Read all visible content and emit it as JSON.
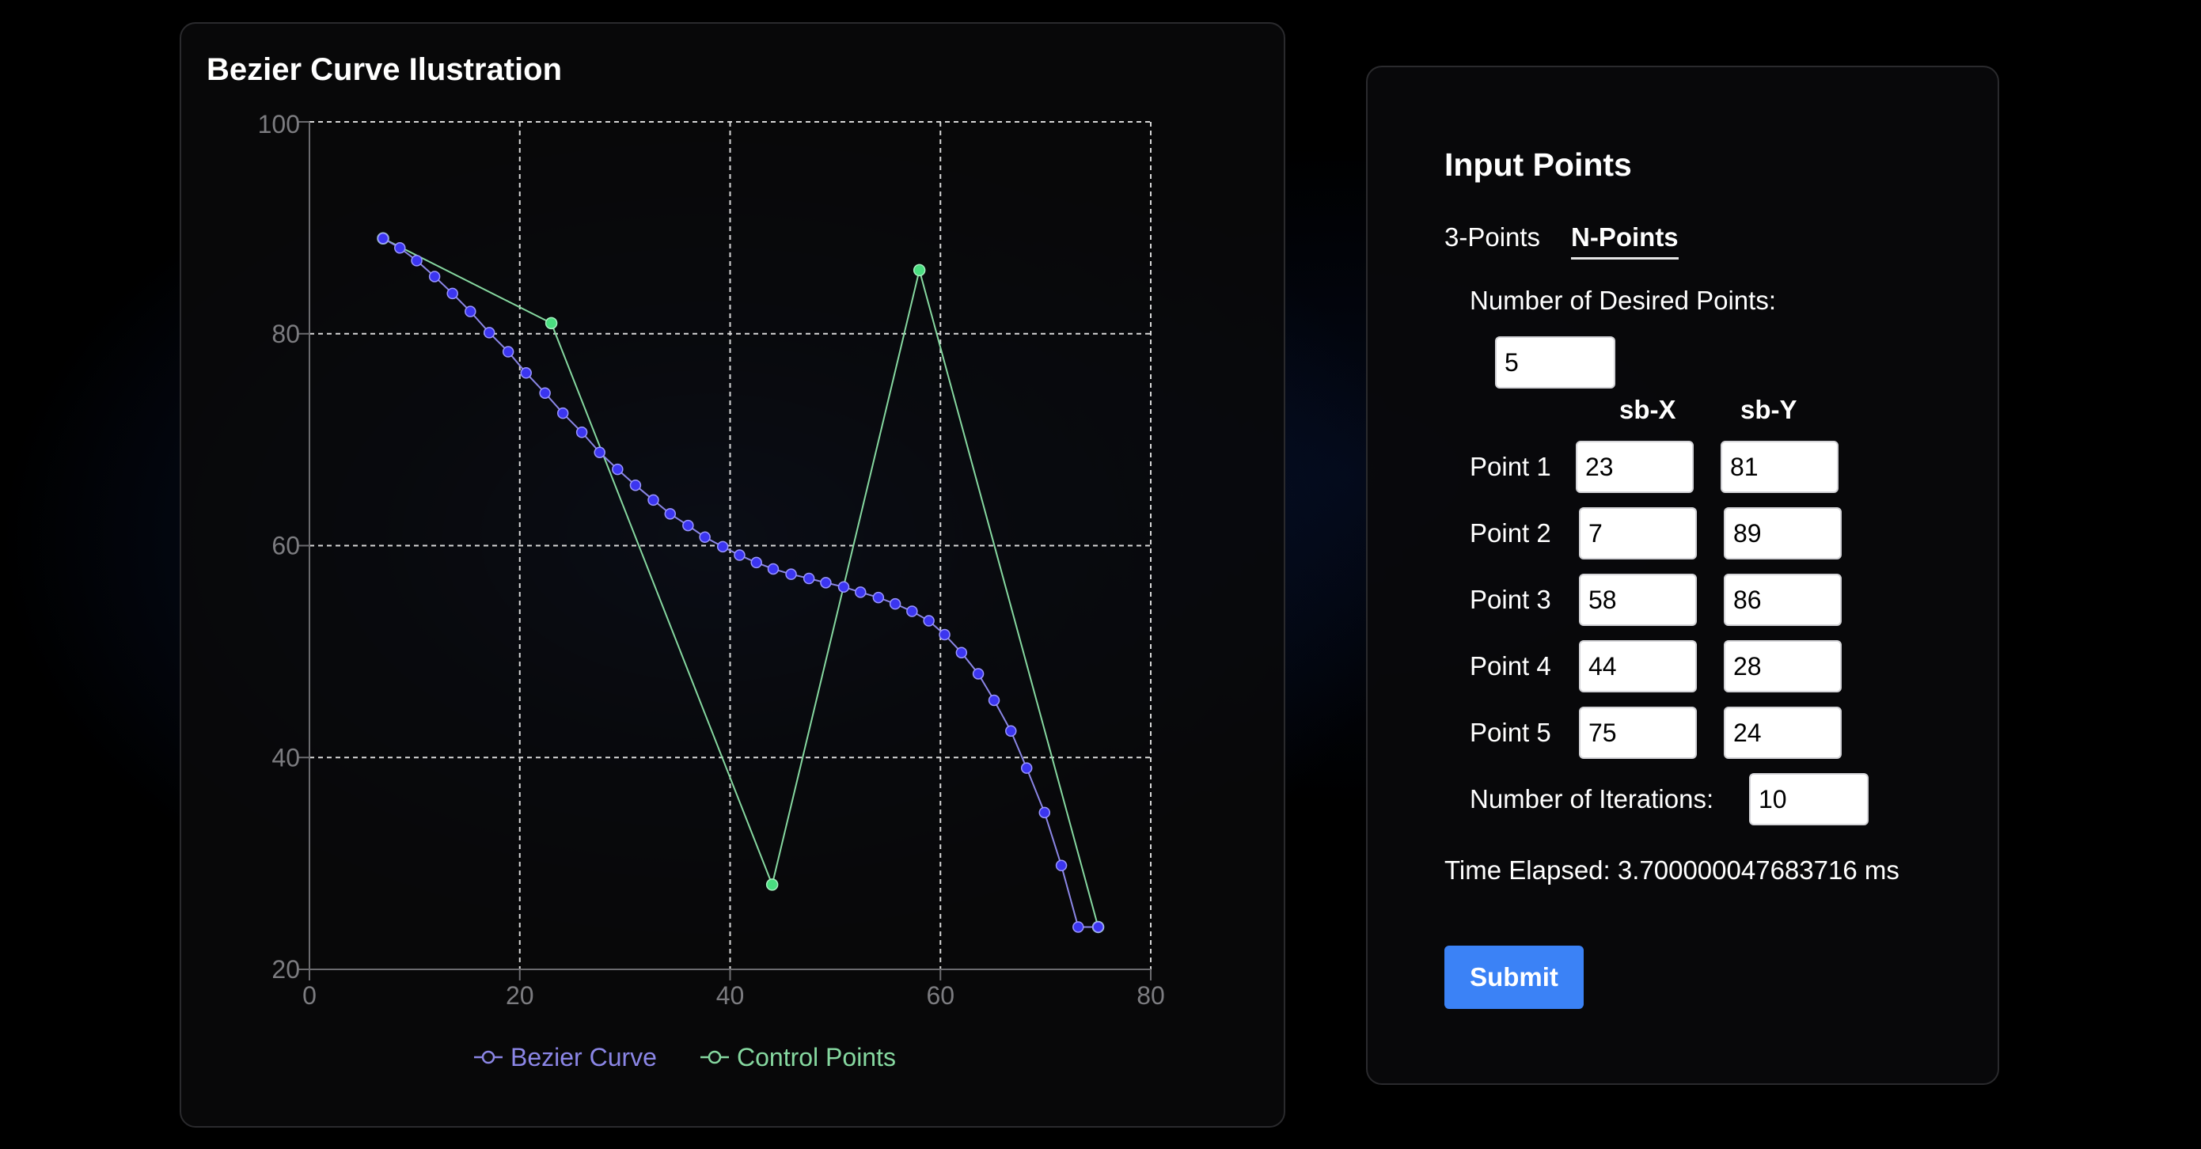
{
  "chart_card": {
    "title": "Bezier Curve Ilustration"
  },
  "chart_data": {
    "type": "line",
    "title": "Bezier Curve Ilustration",
    "xlim": [
      0,
      80
    ],
    "ylim": [
      20,
      100
    ],
    "x_ticks": [
      "0",
      "20",
      "40",
      "60",
      "80"
    ],
    "y_ticks": [
      "20",
      "40",
      "60",
      "80",
      "100"
    ],
    "grid": true,
    "legend_position": "bottom-center",
    "series": [
      {
        "name": "Bezier Curve",
        "color": "#3b35f0",
        "line_color": "#8b86e6",
        "x": [
          7,
          8.6,
          10.2,
          11.9,
          13.6,
          15.3,
          17.1,
          18.9,
          20.6,
          22.4,
          24.1,
          25.9,
          27.6,
          29.3,
          31,
          32.7,
          34.3,
          36,
          37.6,
          39.3,
          40.9,
          42.5,
          44.1,
          45.8,
          47.5,
          49.1,
          50.8,
          52.4,
          54.1,
          55.7,
          57.3,
          58.9,
          60.4,
          62,
          63.6,
          65.1,
          66.7,
          68.2,
          69.9,
          71.5,
          73.1,
          75
        ],
        "y": [
          89,
          88.1,
          86.9,
          85.4,
          83.8,
          82.1,
          80.1,
          78.3,
          76.3,
          74.4,
          72.5,
          70.7,
          68.8,
          67.2,
          65.7,
          64.3,
          63,
          61.9,
          60.8,
          59.9,
          59.1,
          58.4,
          57.8,
          57.3,
          56.9,
          56.5,
          56.1,
          55.6,
          55.1,
          54.5,
          53.8,
          52.9,
          51.6,
          49.9,
          47.9,
          45.4,
          42.5,
          39,
          34.8,
          29.8,
          24,
          24
        ]
      },
      {
        "name": "Control Points",
        "color": "#4ade80",
        "line_color": "#86d8a0",
        "x": [
          7,
          23,
          44,
          58,
          75
        ],
        "y": [
          89,
          81,
          28,
          86,
          24
        ]
      }
    ]
  },
  "input_panel": {
    "title": "Input Points",
    "tabs": [
      "3-Points",
      "N-Points"
    ],
    "active_tab": "N-Points",
    "desired_points_label": "Number of Desired Points:",
    "desired_points_value": "5",
    "col_x": "sb-X",
    "col_y": "sb-Y",
    "points": [
      {
        "label": "Point 1",
        "x": "23",
        "y": "81"
      },
      {
        "label": "Point 2",
        "x": "7",
        "y": "89"
      },
      {
        "label": "Point 3",
        "x": "58",
        "y": "86"
      },
      {
        "label": "Point 4",
        "x": "44",
        "y": "28"
      },
      {
        "label": "Point 5",
        "x": "75",
        "y": "24"
      }
    ],
    "iterations_label": "Number of Iterations:",
    "iterations_value": "10",
    "time_elapsed": "Time Elapsed: 3.700000047683716 ms",
    "submit_label": "Submit"
  }
}
